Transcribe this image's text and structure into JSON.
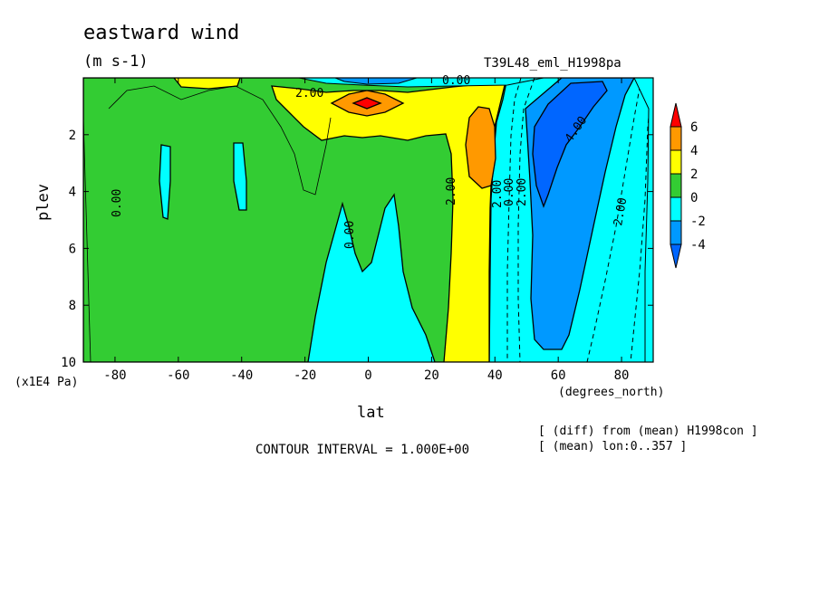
{
  "chart_data": {
    "type": "contour",
    "title": "eastward wind",
    "units": "(m s-1)",
    "run_id": "T39L48_eml_H1998pa",
    "xlabel": "lat",
    "xunit": "(degrees_north)",
    "ylabel": "plev",
    "yunit": "(x1E4 Pa)",
    "xlim": [
      -90,
      90
    ],
    "ylim": [
      10,
      0
    ],
    "xticks": [
      "-80",
      "-60",
      "-40",
      "-20",
      "0",
      "20",
      "40",
      "60",
      "80"
    ],
    "yticks": [
      "2",
      "4",
      "6",
      "8",
      "10"
    ],
    "contour_interval": "CONTOUR INTERVAL = 1.000E+00",
    "notes": [
      "[ (diff) from (mean) H1998con ]",
      "[ (mean) lon:0..357 ]"
    ],
    "colorbar": {
      "labels": [
        "6",
        "4",
        "2",
        "0",
        "-2",
        "-4"
      ],
      "colors": [
        "#ff0000",
        "#ff9900",
        "#ffff00",
        "#33cc33",
        "#00ffff",
        "#0099ff",
        "#0066ff"
      ]
    },
    "contour_labels": [
      "0.00",
      "0.00",
      "2.00",
      "2.00",
      "2.00",
      "0.00",
      "2.00",
      "4.00",
      "2.00",
      "0.00"
    ],
    "features": [
      {
        "name": "equatorial jet core",
        "lat": 0,
        "plev": 1.0,
        "value": 6
      },
      {
        "name": "subtropical maximum",
        "lat": 34,
        "plev": 2.3,
        "value": 4
      },
      {
        "name": "high-latitude minimum",
        "lat": 56,
        "plev": 2.5,
        "value": -4
      }
    ]
  }
}
